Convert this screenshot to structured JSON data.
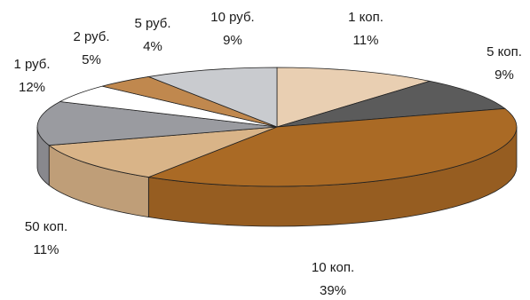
{
  "chart_data": {
    "type": "pie",
    "style": "3d",
    "title": "",
    "legend": "none",
    "slices": [
      {
        "label": "1 коп.",
        "percent_label": "11%",
        "value": 11,
        "color": "#e9cfb2"
      },
      {
        "label": "5 коп.",
        "percent_label": "9%",
        "value": 9,
        "color": "#5b5b5b"
      },
      {
        "label": "10 коп.",
        "percent_label": "39%",
        "value": 39,
        "color": "#aa6a25"
      },
      {
        "label": "50 коп.",
        "percent_label": "11%",
        "value": 11,
        "color": "#d9b488"
      },
      {
        "label": "1 руб.",
        "percent_label": "12%",
        "value": 12,
        "color": "#9a9ba0"
      },
      {
        "label": "2 руб.",
        "percent_label": "5%",
        "value": 5,
        "color": "#ffffff"
      },
      {
        "label": "5 руб.",
        "percent_label": "4%",
        "value": 4,
        "color": "#c0884e"
      },
      {
        "label": "10 руб.",
        "percent_label": "9%",
        "value": 9,
        "color": "#c9cbcf"
      }
    ]
  }
}
